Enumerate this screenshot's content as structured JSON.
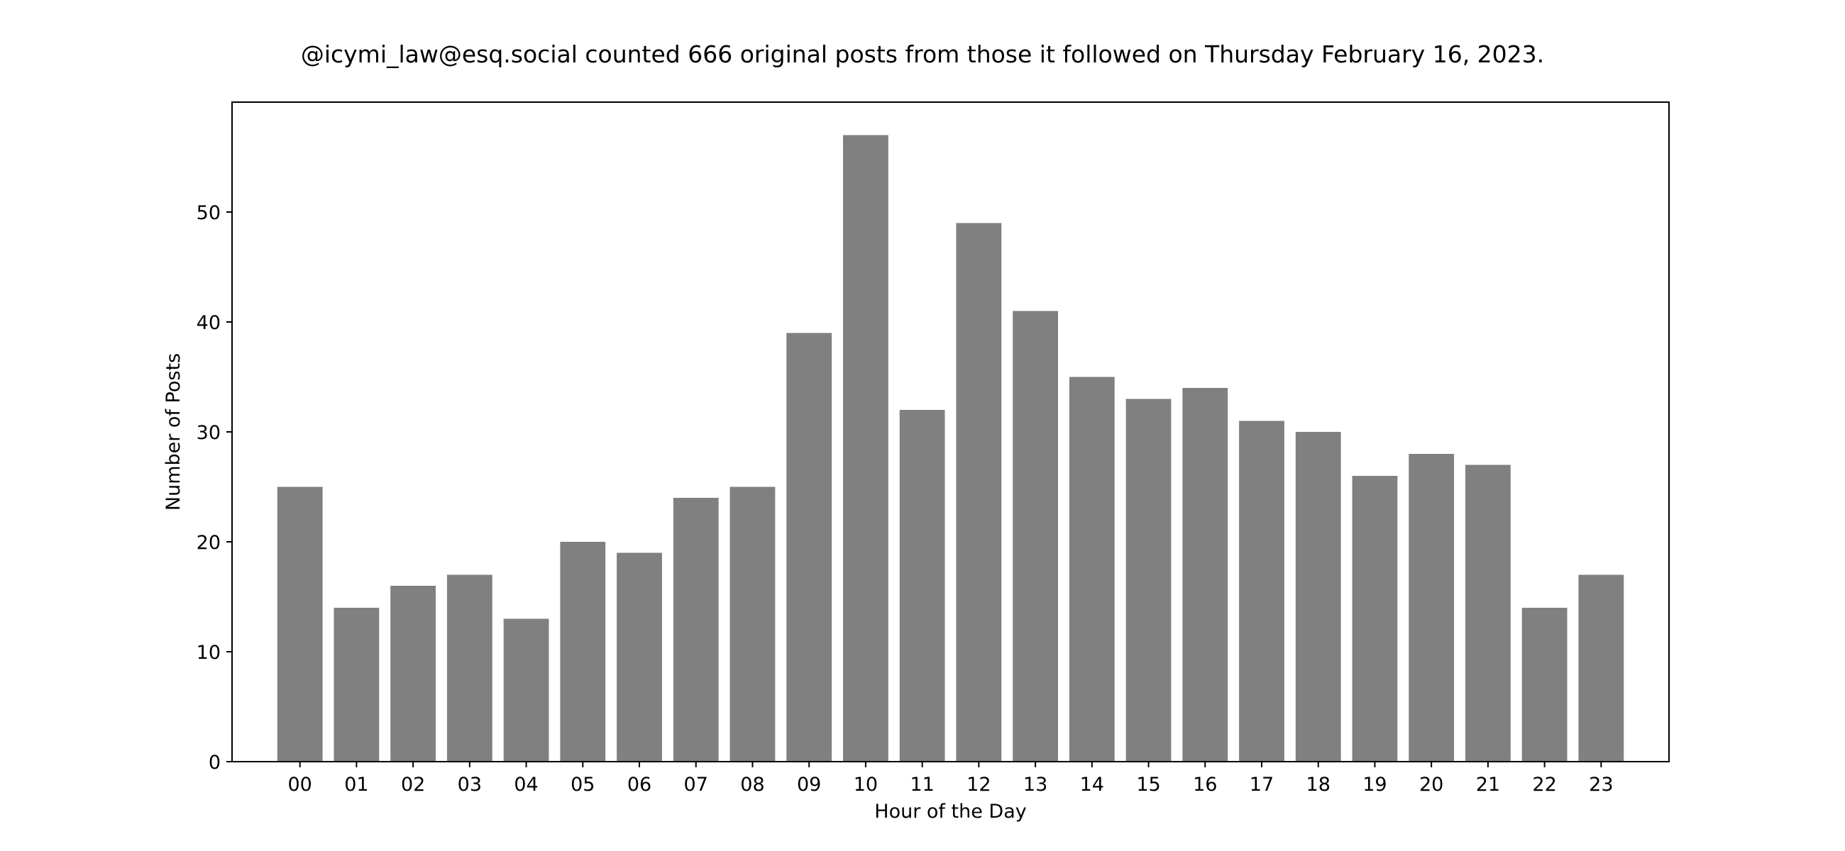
{
  "chart_data": {
    "type": "bar",
    "title": "@icymi_law@esq.social counted 666 original posts from those it followed on Thursday February 16, 2023.",
    "xlabel": "Hour of the Day",
    "ylabel": "Number of Posts",
    "categories": [
      "00",
      "01",
      "02",
      "03",
      "04",
      "05",
      "06",
      "07",
      "08",
      "09",
      "10",
      "11",
      "12",
      "13",
      "14",
      "15",
      "16",
      "17",
      "18",
      "19",
      "20",
      "21",
      "22",
      "23"
    ],
    "values": [
      25,
      14,
      16,
      17,
      13,
      20,
      19,
      24,
      25,
      39,
      57,
      32,
      49,
      41,
      35,
      33,
      34,
      31,
      30,
      26,
      28,
      27,
      14,
      17
    ],
    "ylim": [
      0,
      60
    ],
    "yticks": [
      0,
      10,
      20,
      30,
      40,
      50
    ],
    "bar_color": "#808080",
    "grid": false,
    "legend": "none"
  }
}
